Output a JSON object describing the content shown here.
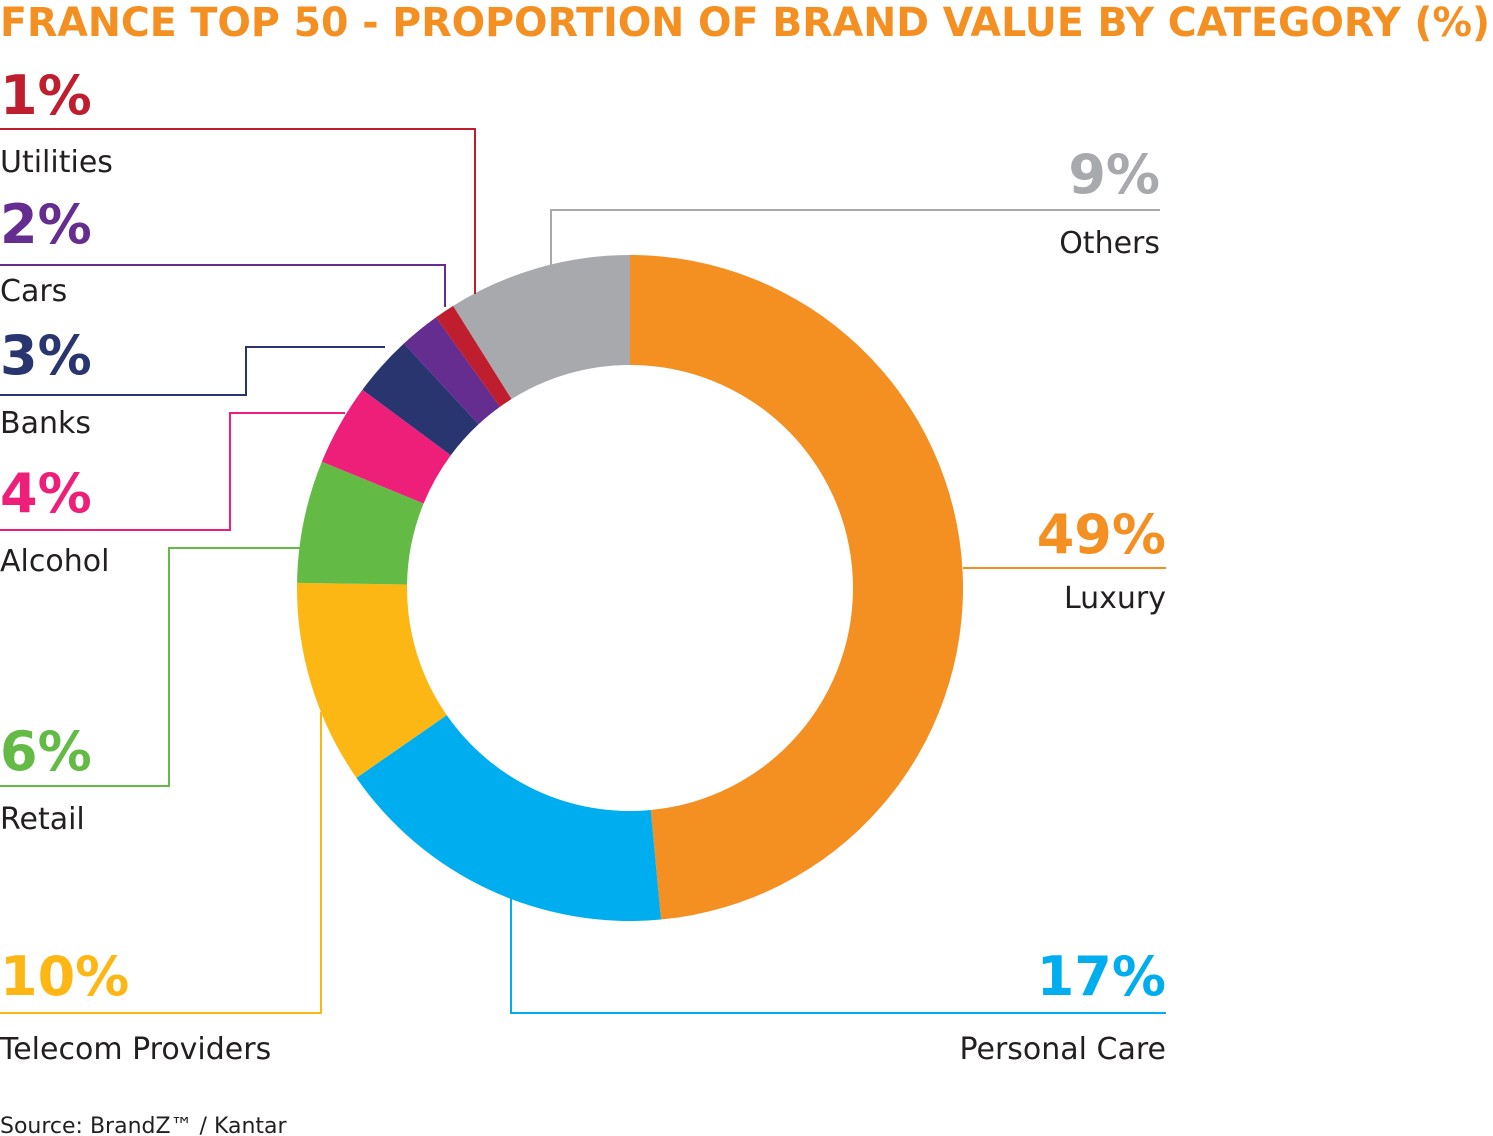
{
  "chart_data": {
    "type": "pie",
    "donut": true,
    "title": "FRANCE TOP 50 - PROPORTION OF BRAND VALUE BY CATEGORY (%)",
    "source": "Source: BrandZ™ / Kantar",
    "slices": [
      {
        "label": "Luxury",
        "value": 49,
        "pct_label": "49%",
        "color": "#f48f22"
      },
      {
        "label": "Personal Care",
        "value": 17,
        "pct_label": "17%",
        "color": "#00aeef"
      },
      {
        "label": "Telecom Providers",
        "value": 10,
        "pct_label": "10%",
        "color": "#fdb714"
      },
      {
        "label": "Retail",
        "value": 6,
        "pct_label": "6%",
        "color": "#63bb46"
      },
      {
        "label": "Alcohol",
        "value": 4,
        "pct_label": "4%",
        "color": "#ed1f79"
      },
      {
        "label": "Banks",
        "value": 3,
        "pct_label": "3%",
        "color": "#28356f"
      },
      {
        "label": "Cars",
        "value": 2,
        "pct_label": "2%",
        "color": "#662d91"
      },
      {
        "label": "Utilities",
        "value": 1,
        "pct_label": "1%",
        "color": "#be1e2d"
      },
      {
        "label": "Others",
        "value": 9,
        "pct_label": "9%",
        "color": "#a7a9ac"
      }
    ],
    "title_color": "#f48f22"
  }
}
